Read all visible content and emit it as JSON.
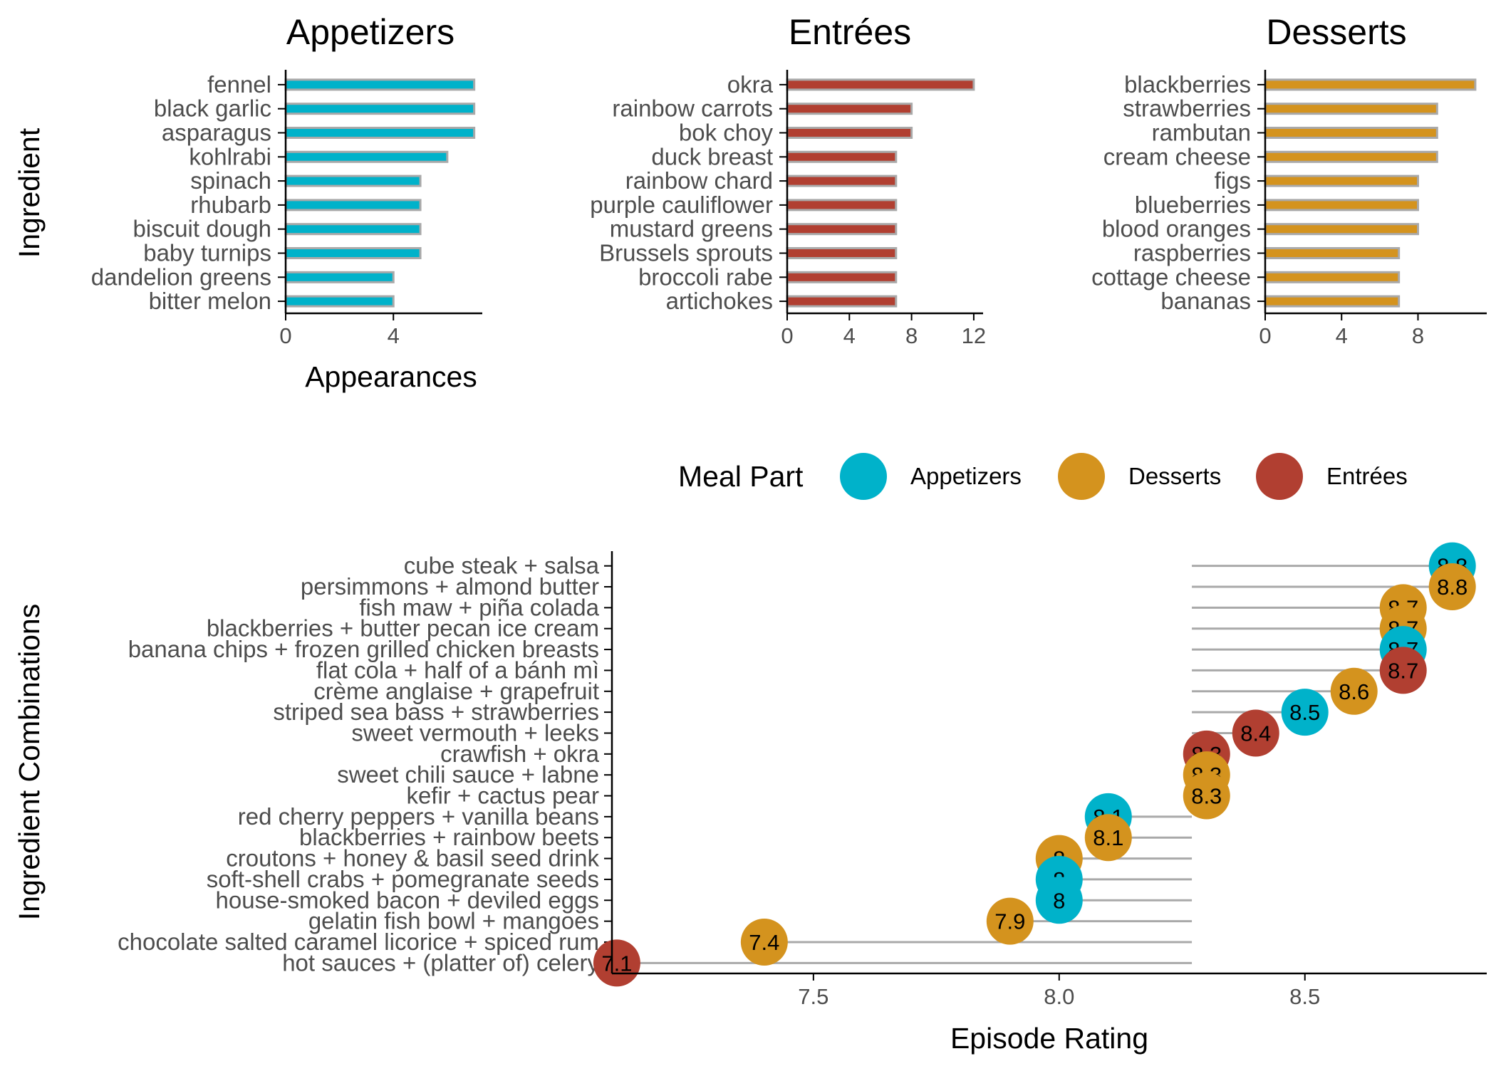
{
  "colors": {
    "Appetizers": "#00B2CA",
    "Desserts": "#D4931E",
    "Entrées": "#B13F31",
    "bar_outline": "#A9A9A9",
    "segment": "#A9A9A9",
    "axis": "#000000"
  },
  "chart_data": [
    {
      "type": "bar",
      "orientation": "horizontal",
      "title": "Appetizers",
      "xlabel": "Appearances",
      "ylabel": "Ingredient",
      "xlim": [
        0,
        7.3
      ],
      "xticks": [
        0,
        4
      ],
      "categories": [
        "fennel",
        "black garlic",
        "asparagus",
        "kohlrabi",
        "spinach",
        "rhubarb",
        "biscuit dough",
        "baby turnips",
        "dandelion greens",
        "bitter melon"
      ],
      "values": [
        7,
        7,
        7,
        6,
        5,
        5,
        5,
        5,
        4,
        4
      ]
    },
    {
      "type": "bar",
      "orientation": "horizontal",
      "title": "Entrées",
      "xlabel": "",
      "ylabel": "",
      "xlim": [
        0,
        12.6
      ],
      "xticks": [
        0,
        4,
        8,
        12
      ],
      "categories": [
        "okra",
        "rainbow carrots",
        "bok choy",
        "duck breast",
        "rainbow chard",
        "purple cauliflower",
        "mustard greens",
        "Brussels sprouts",
        "broccoli rabe",
        "artichokes"
      ],
      "values": [
        12,
        8,
        8,
        7,
        7,
        7,
        7,
        7,
        7,
        7
      ]
    },
    {
      "type": "bar",
      "orientation": "horizontal",
      "title": "Desserts",
      "xlabel": "",
      "ylabel": "",
      "xlim": [
        0,
        11.6
      ],
      "xticks": [
        0,
        4,
        8
      ],
      "categories": [
        "blackberries",
        "strawberries",
        "rambutan",
        "cream cheese",
        "figs",
        "blueberries",
        "blood oranges",
        "raspberries",
        "cottage cheese",
        "bananas"
      ],
      "values": [
        11,
        9,
        9,
        9,
        8,
        8,
        8,
        7,
        7,
        7
      ]
    },
    {
      "type": "scatter",
      "subtype": "lollipop",
      "xlabel": "Episode Rating",
      "ylabel": "Ingredient Combinations",
      "xlim": [
        7.09,
        8.87
      ],
      "xticks": [
        7.5,
        8.0,
        8.5
      ],
      "xtick_labels": [
        "7.5",
        "8.0",
        "8.5"
      ],
      "segment_anchor": 8.27,
      "legend": {
        "title": "Meal Part",
        "position": "top",
        "entries": [
          "Appetizers",
          "Desserts",
          "Entrées"
        ]
      },
      "points": [
        {
          "label": "cube steak +  salsa",
          "value": 8.8,
          "text": "8.8",
          "group": "Appetizers"
        },
        {
          "label": "persimmons +  almond butter",
          "value": 8.8,
          "text": "8.8",
          "group": "Desserts"
        },
        {
          "label": "fish maw +  piña colada",
          "value": 8.7,
          "text": "8.7",
          "group": "Desserts"
        },
        {
          "label": "blackberries +  butter pecan ice cream",
          "value": 8.7,
          "text": "8.7",
          "group": "Desserts"
        },
        {
          "label": "banana chips +  frozen grilled chicken breasts",
          "value": 8.7,
          "text": "8.7",
          "group": "Appetizers"
        },
        {
          "label": "flat cola +  half of a bánh mì",
          "value": 8.7,
          "text": "8.7",
          "group": "Entrées"
        },
        {
          "label": "crème anglaise +  grapefruit",
          "value": 8.6,
          "text": "8.6",
          "group": "Desserts"
        },
        {
          "label": "striped sea bass +  strawberries",
          "value": 8.5,
          "text": "8.5",
          "group": "Appetizers"
        },
        {
          "label": "sweet vermouth +  leeks",
          "value": 8.4,
          "text": "8.4",
          "group": "Entrées"
        },
        {
          "label": "crawfish +  okra",
          "value": 8.3,
          "text": "8.3",
          "group": "Entrées"
        },
        {
          "label": "sweet chili sauce +  labne",
          "value": 8.3,
          "text": "8.3",
          "group": "Desserts"
        },
        {
          "label": "kefir +  cactus pear",
          "value": 8.3,
          "text": "8.3",
          "group": "Desserts"
        },
        {
          "label": "red cherry peppers +  vanilla beans",
          "value": 8.1,
          "text": "8.1",
          "group": "Appetizers"
        },
        {
          "label": "blackberries +  rainbow beets",
          "value": 8.1,
          "text": "8.1",
          "group": "Desserts"
        },
        {
          "label": "croutons +  honey & basil seed drink",
          "value": 8.0,
          "text": "8",
          "group": "Desserts"
        },
        {
          "label": "soft-shell crabs +  pomegranate seeds",
          "value": 8.0,
          "text": "8",
          "group": "Appetizers"
        },
        {
          "label": "house-smoked bacon +  deviled eggs",
          "value": 8.0,
          "text": "8",
          "group": "Appetizers"
        },
        {
          "label": "gelatin fish bowl +  mangoes",
          "value": 7.9,
          "text": "7.9",
          "group": "Desserts"
        },
        {
          "label": "chocolate salted caramel licorice +  spiced rum",
          "value": 7.4,
          "text": "7.4",
          "group": "Desserts"
        },
        {
          "label": "hot sauces +  (platter of) celery",
          "value": 7.1,
          "text": "7.1",
          "group": "Entrées"
        }
      ]
    }
  ]
}
